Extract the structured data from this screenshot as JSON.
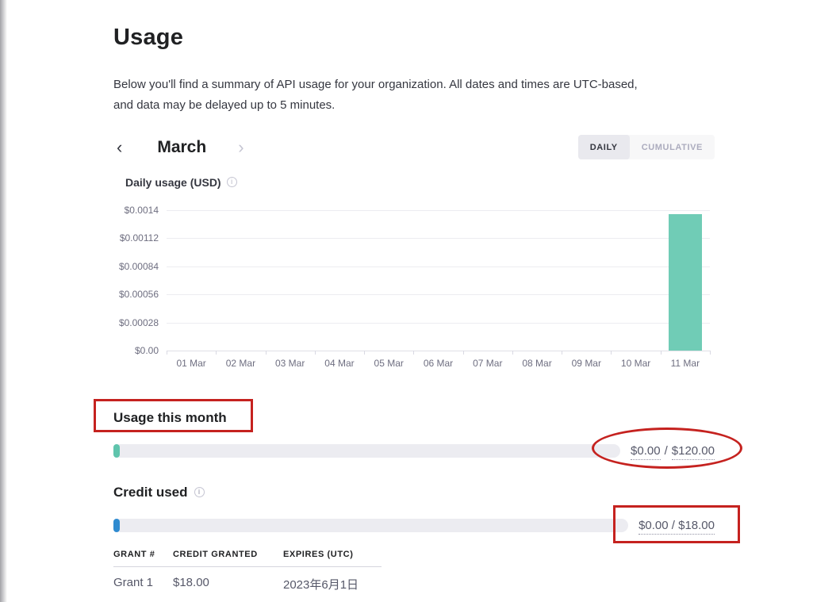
{
  "page": {
    "title": "Usage",
    "description_line1": "Below you'll find a summary of API usage for your organization. All dates and times are UTC-based,",
    "description_line2": "and data may be delayed up to 5 minutes."
  },
  "month_nav": {
    "current_month": "March",
    "prev_icon": "‹",
    "next_icon": "›"
  },
  "view_toggle": {
    "daily_label": "DAILY",
    "cumulative_label": "CUMULATIVE",
    "selected": "DAILY"
  },
  "chart_data": {
    "type": "bar",
    "title": "Daily usage (USD)",
    "categories": [
      "01 Mar",
      "02 Mar",
      "03 Mar",
      "04 Mar",
      "05 Mar",
      "06 Mar",
      "07 Mar",
      "08 Mar",
      "09 Mar",
      "10 Mar",
      "11 Mar"
    ],
    "values": [
      0,
      0,
      0,
      0,
      0,
      0,
      0,
      0,
      0,
      0,
      0.00136
    ],
    "y_ticks": [
      {
        "label": "$0.0014",
        "value": 0.0014
      },
      {
        "label": "$0.00112",
        "value": 0.00112
      },
      {
        "label": "$0.00084",
        "value": 0.00084
      },
      {
        "label": "$0.00056",
        "value": 0.00056
      },
      {
        "label": "$0.00028",
        "value": 0.00028
      },
      {
        "label": "$0.00",
        "value": 0
      }
    ],
    "ylim": [
      0,
      0.0014
    ],
    "xlabel": "",
    "ylabel": "Daily usage (USD)",
    "grid": true,
    "legend_position": "none",
    "bar_color": "#70ccb6"
  },
  "usage_this_month": {
    "heading": "Usage this month",
    "used": "$0.00",
    "separator": "/",
    "limit": "$120.00",
    "fill_color": "#5fc4ac"
  },
  "credit_used": {
    "heading": "Credit used",
    "value": "$0.00 / $18.00",
    "fill_color": "#2f8bd0"
  },
  "grants_table": {
    "headers": [
      "GRANT #",
      "CREDIT GRANTED",
      "EXPIRES (UTC)"
    ],
    "rows": [
      [
        "Grant 1",
        "$18.00",
        "2023年6月1日"
      ]
    ]
  },
  "annotations": {
    "color": "#c5221f"
  },
  "info_icon_glyph": "i"
}
